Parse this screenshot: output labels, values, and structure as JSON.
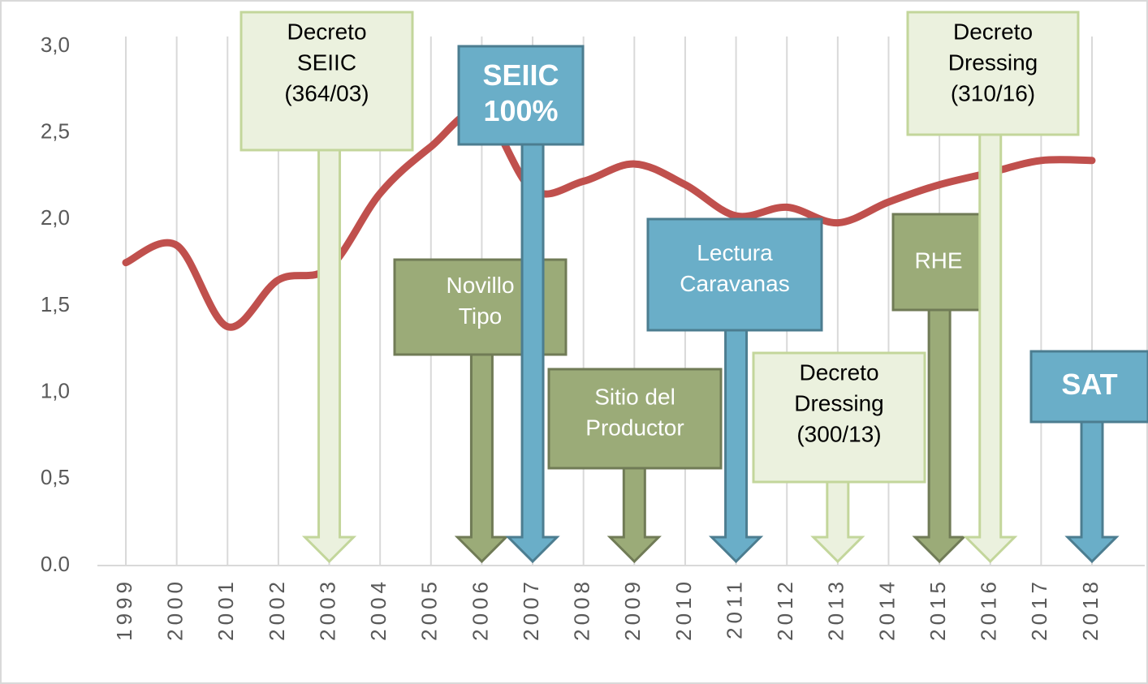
{
  "chart_data": {
    "type": "line",
    "categories": [
      "1999",
      "2000",
      "2001",
      "2002",
      "2003",
      "2004",
      "2005",
      "2006",
      "2007",
      "2008",
      "2009",
      "2010",
      "2011",
      "2012",
      "2013",
      "2014",
      "2015",
      "2016",
      "2017",
      "2018"
    ],
    "values": [
      1.75,
      1.85,
      1.38,
      1.65,
      1.72,
      2.15,
      2.42,
      2.62,
      2.17,
      2.22,
      2.32,
      2.2,
      2.02,
      2.07,
      1.98,
      2.1,
      2.2,
      2.27,
      2.34,
      2.34
    ],
    "color": "#c0504d",
    "ylim": [
      0,
      3
    ],
    "yticks": [
      {
        "value": 0,
        "label": "0.0"
      },
      {
        "value": 0.5,
        "label": "0,5"
      },
      {
        "value": 1,
        "label": "1,0"
      },
      {
        "value": 1.5,
        "label": "1,5"
      },
      {
        "value": 2,
        "label": "2,0"
      },
      {
        "value": 2.5,
        "label": "2,5"
      },
      {
        "value": 3,
        "label": "3,0"
      }
    ],
    "grid": "x",
    "annotations": [
      {
        "lines": [
          "Decreto",
          "SEIIC",
          "(364/03)"
        ],
        "at": "2003",
        "color": "#ebf1de",
        "bold": false
      },
      {
        "lines": [
          "Novillo",
          "Tipo"
        ],
        "at": "2006",
        "color": "#9bab78",
        "bold": false
      },
      {
        "lines": [
          "SEIIC",
          "100%"
        ],
        "at": "2007",
        "color": "#6aaec8",
        "bold": true
      },
      {
        "lines": [
          "Sitio del",
          "Productor"
        ],
        "at": "2009",
        "color": "#9bab78",
        "bold": false
      },
      {
        "lines": [
          "Lectura",
          "Caravanas"
        ],
        "at": "2011",
        "color": "#6aaec8",
        "bold": false
      },
      {
        "lines": [
          "Decreto",
          "Dressing",
          "(300/13)"
        ],
        "at": "2013",
        "color": "#ebf1de",
        "bold": false
      },
      {
        "lines": [
          "RHE"
        ],
        "at": "2015",
        "color": "#9bab78",
        "bold": false
      },
      {
        "lines": [
          "Decreto",
          "Dressing",
          "(310/16)"
        ],
        "at": "2016",
        "color": "#ebf1de",
        "bold": false
      },
      {
        "lines": [
          "SAT"
        ],
        "at": "2018",
        "color": "#6aaec8",
        "bold": true
      }
    ]
  }
}
